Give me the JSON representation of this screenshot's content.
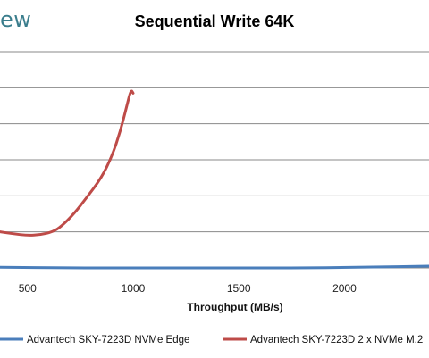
{
  "brand": {
    "text": "ew"
  },
  "chart_data": {
    "type": "line",
    "title": "Sequential Write 64K",
    "xlabel": "Throughput (MB/s)",
    "ylabel": "",
    "xlim": [
      370,
      2400
    ],
    "ylim": [
      0,
      6
    ],
    "xticks": [
      500,
      1000,
      1500,
      2000
    ],
    "xtick_labels": [
      "500",
      "1000",
      "1500",
      "2000"
    ],
    "tick_label_left_partial": "500",
    "grid": true,
    "legend_position": "bottom",
    "series": [
      {
        "name": "Advantech SKY-7223D NVMe Edge",
        "color": "#4a7ebb",
        "x": [
          370,
          700,
          1000,
          1400,
          1800,
          2100,
          2400
        ],
        "y": [
          0.02,
          0.0,
          0.0,
          0.0,
          0.0,
          0.02,
          0.05
        ]
      },
      {
        "name": "Advantech SKY-7223D 2 x NVMe M.2",
        "color": "#be4b48",
        "x": [
          370,
          430,
          500,
          560,
          620,
          660,
          720,
          780,
          850,
          900,
          940,
          970,
          990,
          1000
        ],
        "y": [
          1.0,
          0.95,
          0.9,
          0.92,
          1.0,
          1.15,
          1.5,
          1.95,
          2.5,
          3.1,
          3.8,
          4.5,
          4.95,
          4.85
        ]
      }
    ]
  }
}
